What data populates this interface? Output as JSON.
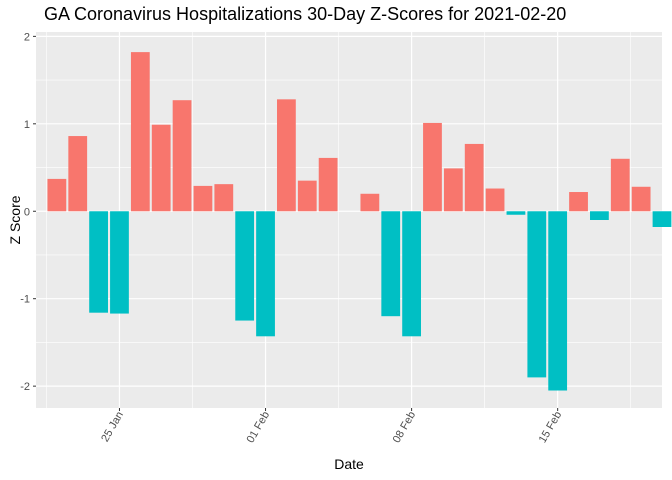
{
  "chart_data": {
    "type": "bar",
    "title": "GA Coronavirus Hospitalizations 30-Day Z-Scores for 2021-02-20",
    "xlabel": "Date",
    "ylabel": "Z Score",
    "ylim": [
      -2.25,
      2.05
    ],
    "yticks": [
      -2,
      -1,
      0,
      1,
      2
    ],
    "xticks": [
      {
        "label": "25 Jan",
        "date": "2021-01-25"
      },
      {
        "label": "01 Feb",
        "date": "2021-02-01"
      },
      {
        "label": "08 Feb",
        "date": "2021-02-08"
      },
      {
        "label": "15 Feb",
        "date": "2021-02-15"
      }
    ],
    "xrange": [
      "2021-01-21",
      "2021-02-20"
    ],
    "colors": {
      "positive": "#F8766D",
      "negative": "#00BFC4",
      "panel": "#EBEBEB",
      "grid": "#FFFFFF"
    },
    "legend": "none",
    "grid": true,
    "x": [
      "2021-01-22",
      "2021-01-23",
      "2021-01-24",
      "2021-01-25",
      "2021-01-26",
      "2021-01-27",
      "2021-01-28",
      "2021-01-29",
      "2021-01-30",
      "2021-01-31",
      "2021-02-01",
      "2021-02-02",
      "2021-02-03",
      "2021-02-04",
      "2021-02-05",
      "2021-02-06",
      "2021-02-07",
      "2021-02-08",
      "2021-02-09",
      "2021-02-10",
      "2021-02-11",
      "2021-02-12",
      "2021-02-13",
      "2021-02-14",
      "2021-02-15",
      "2021-02-16",
      "2021-02-17",
      "2021-02-18",
      "2021-02-19",
      "2021-02-20"
    ],
    "values": [
      0.37,
      0.86,
      -1.16,
      -1.17,
      1.82,
      0.99,
      1.27,
      0.29,
      0.31,
      -1.25,
      -1.43,
      1.28,
      0.35,
      0.61,
      null,
      0.2,
      -1.2,
      -1.43,
      1.01,
      0.49,
      0.77,
      0.26,
      -0.04,
      -1.9,
      -2.05,
      0.22,
      -0.1,
      0.6,
      0.28,
      -0.18
    ]
  }
}
